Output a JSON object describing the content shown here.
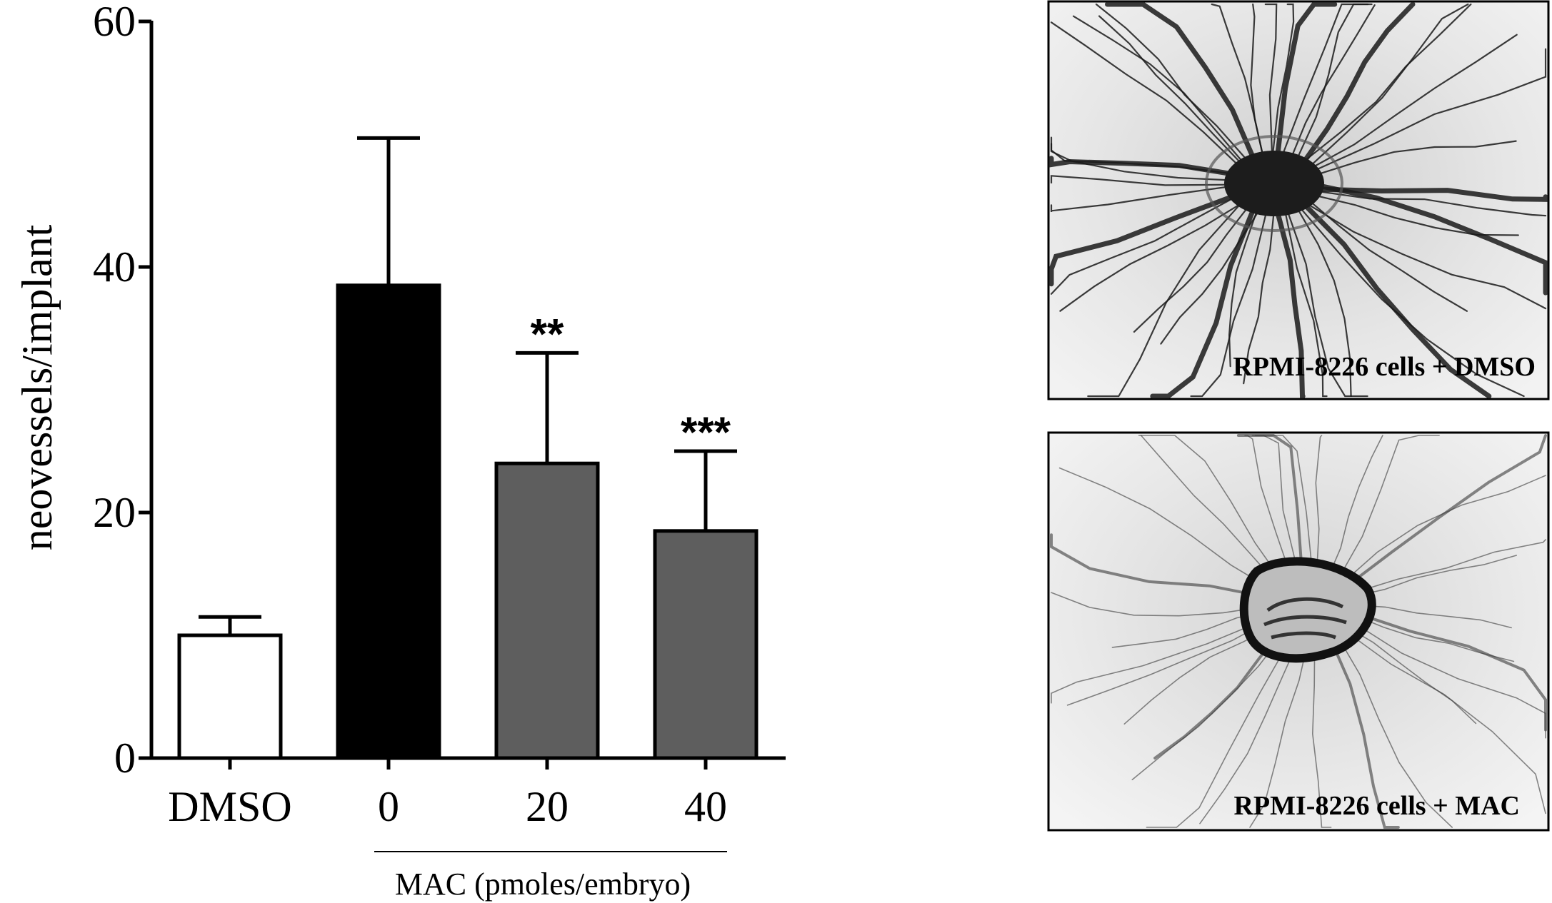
{
  "chart_data": {
    "type": "bar",
    "categories": [
      "DMSO",
      "0",
      "20",
      "40"
    ],
    "values": [
      10,
      38.5,
      24,
      18.5
    ],
    "errors_upper": [
      11.5,
      50.5,
      33,
      25
    ],
    "bar_colors": [
      "#ffffff",
      "#000000",
      "#5e5e5e",
      "#5e5e5e"
    ],
    "significance": [
      "",
      "",
      "**",
      "***"
    ],
    "ylabel": "neovessels/implant",
    "group_label": "MAC (pmoles/embryo)",
    "ylim": [
      0,
      60
    ],
    "yticks": [
      "0",
      "20",
      "40",
      "60"
    ]
  },
  "panels": [
    {
      "caption": "RPMI-8226 cells + DMSO",
      "description": "CAM image: dense radiating blood vessels around implant"
    },
    {
      "caption": "RPMI-8226 cells + MAC",
      "description": "CAM image: sparse vessels around implant"
    }
  ],
  "colors": {
    "axis": "#000000",
    "panel_bg": "#d9d9d9",
    "vessel": "#1a1a1a"
  }
}
